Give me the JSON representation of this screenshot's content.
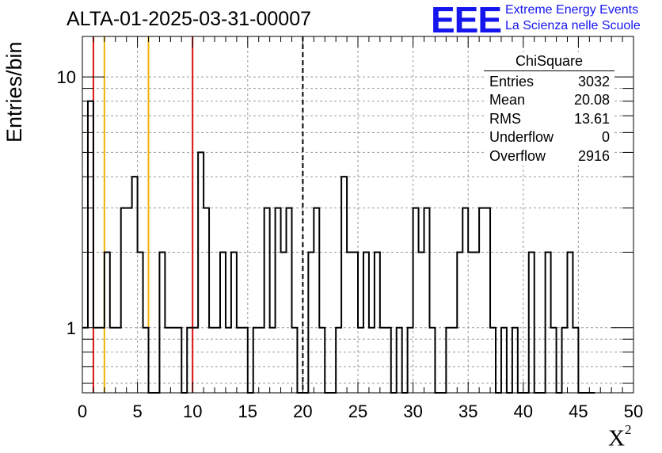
{
  "title": "ALTA-01-2025-03-31-00007",
  "logo": {
    "mark": "EEE",
    "line1": "Extreme Energy Events",
    "line2": "La Scienza nelle Scuole",
    "color": "#1515ee"
  },
  "stats": {
    "name": "ChiSquare",
    "rows": [
      {
        "label": "Entries",
        "value": "3032"
      },
      {
        "label": "Mean",
        "value": "20.08"
      },
      {
        "label": "RMS",
        "value": "13.61"
      },
      {
        "label": "Underflow",
        "value": "0"
      },
      {
        "label": "Overflow",
        "value": "2916"
      }
    ]
  },
  "chart_data": {
    "type": "histogram",
    "title": "ALTA-01-2025-03-31-00007",
    "xlabel": "X",
    "xlabel_superscript": "2",
    "ylabel": "Entries/bin",
    "xlim": [
      0,
      50
    ],
    "ylim": [
      0.55,
      14.5
    ],
    "yscale": "log",
    "grid": true,
    "bin_width": 1,
    "bins": [
      [
        0,
        1
      ],
      [
        0.5,
        8
      ],
      [
        1,
        1
      ],
      [
        2,
        2
      ],
      [
        2.5,
        1
      ],
      [
        3.5,
        3
      ],
      [
        4.5,
        4
      ],
      [
        5,
        2
      ],
      [
        5.5,
        1
      ],
      [
        6,
        0
      ],
      [
        7,
        2
      ],
      [
        7.5,
        1
      ],
      [
        9,
        0
      ],
      [
        9.5,
        1
      ],
      [
        10.5,
        5
      ],
      [
        11,
        3
      ],
      [
        11.5,
        1
      ],
      [
        12.5,
        2
      ],
      [
        13,
        1
      ],
      [
        13.5,
        2
      ],
      [
        14,
        1
      ],
      [
        15,
        0
      ],
      [
        15.5,
        1
      ],
      [
        16.5,
        3
      ],
      [
        17,
        1
      ],
      [
        17.5,
        3
      ],
      [
        18,
        2
      ],
      [
        18.5,
        3
      ],
      [
        19,
        1
      ],
      [
        19.5,
        0
      ],
      [
        20.5,
        2
      ],
      [
        21,
        3
      ],
      [
        21.5,
        1
      ],
      [
        22,
        0
      ],
      [
        23,
        1
      ],
      [
        23.5,
        4
      ],
      [
        24,
        2
      ],
      [
        25,
        1
      ],
      [
        25.5,
        2
      ],
      [
        26,
        1
      ],
      [
        26.5,
        2
      ],
      [
        27,
        1
      ],
      [
        28,
        0
      ],
      [
        28.5,
        1
      ],
      [
        29,
        0
      ],
      [
        29.5,
        1
      ],
      [
        30,
        3
      ],
      [
        30.5,
        2
      ],
      [
        31,
        3
      ],
      [
        31.5,
        1
      ],
      [
        32,
        0
      ],
      [
        33,
        1
      ],
      [
        34,
        2
      ],
      [
        34.5,
        3
      ],
      [
        35,
        2
      ],
      [
        36,
        3
      ],
      [
        37,
        1
      ],
      [
        37.5,
        0
      ],
      [
        38,
        1
      ],
      [
        38.5,
        0
      ],
      [
        39,
        1
      ],
      [
        39.5,
        0
      ],
      [
        40.5,
        2
      ],
      [
        41,
        0
      ],
      [
        42,
        2
      ],
      [
        42.5,
        1
      ],
      [
        43,
        0
      ],
      [
        43.5,
        1
      ],
      [
        44,
        2
      ],
      [
        44.5,
        1
      ],
      [
        45,
        0
      ],
      [
        45.5,
        0
      ]
    ],
    "xticks": [
      "0",
      "5",
      "10",
      "15",
      "20",
      "25",
      "30",
      "35",
      "40",
      "45",
      "50"
    ],
    "yticks": [
      "1",
      "10"
    ],
    "vertical_lines": [
      {
        "x": 1,
        "color": "#dd1111",
        "style": "solid"
      },
      {
        "x": 2,
        "color": "#f0b400",
        "style": "solid"
      },
      {
        "x": 6,
        "color": "#f0b400",
        "style": "solid"
      },
      {
        "x": 10,
        "color": "#dd1111",
        "style": "solid"
      },
      {
        "x": 20,
        "color": "#000000",
        "style": "dashed"
      }
    ]
  }
}
